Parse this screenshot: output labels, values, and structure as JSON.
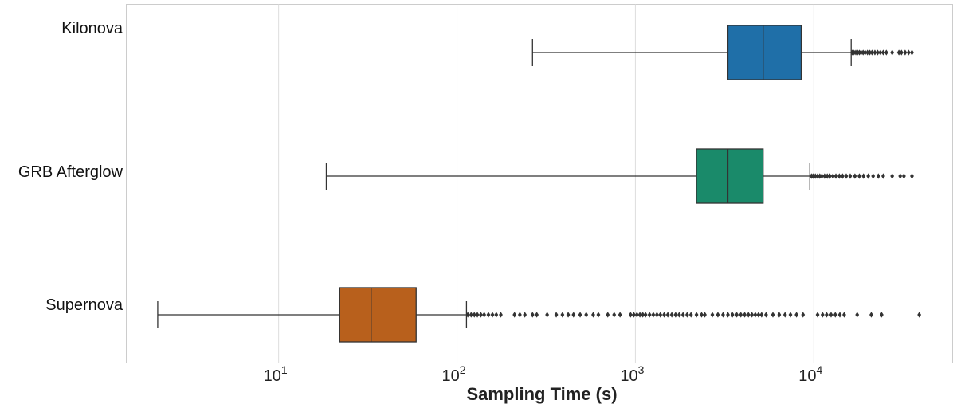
{
  "chart_data": {
    "type": "box",
    "orientation": "horizontal",
    "xlabel": "Sampling Time (s)",
    "xscale": "log",
    "xlim": [
      1.4,
      60000
    ],
    "x_ticks": [
      {
        "value": 10,
        "base": "10",
        "exp": "1"
      },
      {
        "value": 100,
        "base": "10",
        "exp": "2"
      },
      {
        "value": 1000,
        "base": "10",
        "exp": "3"
      },
      {
        "value": 10000,
        "base": "10",
        "exp": "4"
      }
    ],
    "grid": "vertical",
    "categories": [
      "Kilonova",
      "GRB Afterglow",
      "Supernova"
    ],
    "series": [
      {
        "category": "Kilonova",
        "color": "#1f6fa8",
        "whisker_low": 265,
        "q1": 3300,
        "median": 5200,
        "q3": 8500,
        "whisker_high": 16200,
        "outliers": [
          16400,
          16800,
          17200,
          17600,
          18000,
          18400,
          18900,
          19400,
          20000,
          20600,
          21200,
          22000,
          22800,
          23600,
          24500,
          25500,
          27500,
          30000,
          31000,
          32500,
          34000,
          35500
        ]
      },
      {
        "category": "GRB Afterglow",
        "color": "#1a8a6a",
        "whisker_low": 18.5,
        "q1": 2200,
        "median": 3300,
        "q3": 5200,
        "whisker_high": 9500,
        "outliers": [
          9700,
          9900,
          10200,
          10500,
          10800,
          11100,
          11500,
          11900,
          12300,
          12800,
          13300,
          13900,
          14500,
          15200,
          16000,
          17000,
          18000,
          19000,
          20200,
          21500,
          23000,
          24500,
          27500,
          30500,
          32000,
          35500
        ]
      },
      {
        "category": "Supernova",
        "color": "#b8601c",
        "whisker_low": 2.1,
        "q1": 22,
        "median": 33,
        "q3": 59,
        "whisker_high": 113,
        "outliers": [
          115,
          120,
          125,
          130,
          136,
          142,
          150,
          158,
          166,
          176,
          210,
          225,
          240,
          265,
          280,
          320,
          360,
          390,
          420,
          450,
          490,
          530,
          580,
          620,
          700,
          760,
          820,
          940,
          980,
          1020,
          1060,
          1100,
          1140,
          1200,
          1260,
          1320,
          1380,
          1450,
          1520,
          1600,
          1680,
          1760,
          1850,
          1950,
          2050,
          2200,
          2350,
          2450,
          2700,
          2900,
          3100,
          3300,
          3500,
          3700,
          3900,
          4100,
          4300,
          4500,
          4700,
          4900,
          5100,
          5400,
          5900,
          6400,
          6900,
          7400,
          8000,
          8700,
          10500,
          11200,
          11800,
          12500,
          13200,
          14000,
          14800,
          17500,
          21000,
          24000,
          39000
        ]
      }
    ]
  }
}
